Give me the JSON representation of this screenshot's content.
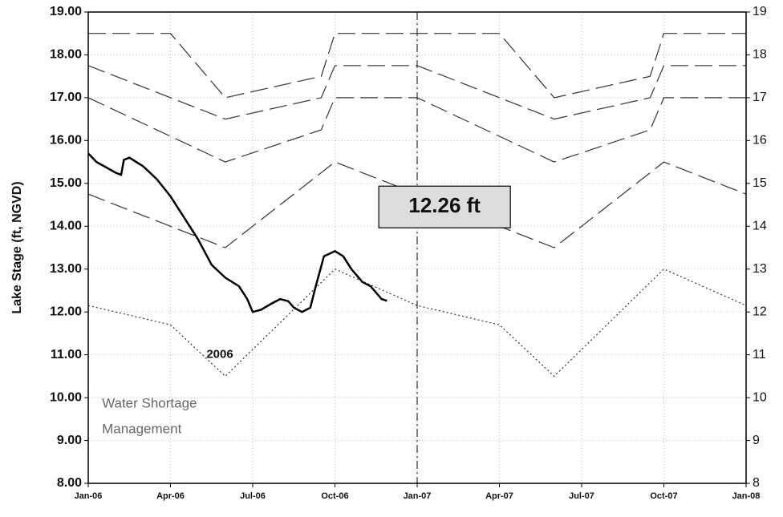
{
  "chart_data": {
    "type": "line",
    "y_label": "Lake Stage (ft, NGVD)",
    "xlim": [
      0,
      24
    ],
    "xticks": [
      {
        "value": 0,
        "label": "Jan-06"
      },
      {
        "value": 3,
        "label": "Apr-06"
      },
      {
        "value": 6,
        "label": "Jul-06"
      },
      {
        "value": 9,
        "label": "Oct-06"
      },
      {
        "value": 12,
        "label": "Jan-07"
      },
      {
        "value": 15,
        "label": "Apr-07"
      },
      {
        "value": 18,
        "label": "Jul-07"
      },
      {
        "value": 21,
        "label": "Oct-07"
      },
      {
        "value": 24,
        "label": "Jan-08"
      }
    ],
    "ylim": [
      8,
      19
    ],
    "yticks": [
      {
        "value": 8,
        "label": "8.00"
      },
      {
        "value": 9,
        "label": "9.00"
      },
      {
        "value": 10,
        "label": "10.00"
      },
      {
        "value": 11,
        "label": "11.00"
      },
      {
        "value": 12,
        "label": "12.00"
      },
      {
        "value": 13,
        "label": "13.00"
      },
      {
        "value": 14,
        "label": "14.00"
      },
      {
        "value": 15,
        "label": "15.00"
      },
      {
        "value": 16,
        "label": "16.00"
      },
      {
        "value": 17,
        "label": "17.00"
      },
      {
        "value": 18,
        "label": "18.00"
      },
      {
        "value": 19,
        "label": "19.00"
      }
    ],
    "y2lim": [
      8,
      19
    ],
    "y2ticks": [
      8,
      9,
      10,
      11,
      12,
      13,
      14,
      15,
      16,
      17,
      18,
      19
    ],
    "grid": true,
    "series": [
      {
        "color": "#333333",
        "dash": "dashed",
        "x": [
          0,
          3,
          5,
          8.5,
          9,
          15,
          17,
          20.5,
          21,
          24
        ],
        "values": [
          18.5,
          18.5,
          17.0,
          17.5,
          18.5,
          18.5,
          17.0,
          17.5,
          18.5,
          18.5
        ]
      },
      {
        "color": "#333333",
        "dash": "dashed",
        "x": [
          0,
          5,
          8.5,
          9,
          12,
          17,
          20.5,
          21,
          24
        ],
        "values": [
          17.75,
          16.5,
          17.0,
          17.75,
          17.75,
          16.5,
          17.0,
          17.75,
          17.75
        ]
      },
      {
        "color": "#333333",
        "dash": "dashed",
        "x": [
          0,
          5,
          8.5,
          9,
          12,
          17,
          20.5,
          21,
          24
        ],
        "values": [
          17.0,
          15.5,
          16.25,
          17.0,
          17.0,
          15.5,
          16.25,
          17.0,
          17.0
        ]
      },
      {
        "color": "#333333",
        "dash": "dashed",
        "x": [
          0,
          5,
          9,
          12,
          17,
          21,
          24
        ],
        "values": [
          14.75,
          13.5,
          15.5,
          14.75,
          13.5,
          15.5,
          14.75
        ]
      },
      {
        "color": "#333333",
        "dash": "dotted",
        "x": [
          0,
          3,
          5,
          9,
          12,
          15,
          17,
          21,
          24
        ],
        "values": [
          12.15,
          11.7,
          10.5,
          13.0,
          12.15,
          11.7,
          10.5,
          13.0,
          12.15
        ]
      },
      {
        "color": "#000000",
        "dash": "solid",
        "x": [
          0,
          0.3,
          1,
          1.2,
          1.3,
          1.5,
          2,
          2.5,
          3,
          3.5,
          4,
          4.5,
          5,
          5.5,
          5.8,
          6,
          6.3,
          6.7,
          7,
          7.3,
          7.5,
          7.8,
          8.1,
          8.3,
          8.6,
          9,
          9.3,
          9.6,
          10,
          10.3,
          10.7,
          10.9
        ],
        "values": [
          15.7,
          15.5,
          15.25,
          15.2,
          15.55,
          15.6,
          15.4,
          15.1,
          14.7,
          14.2,
          13.7,
          13.1,
          12.8,
          12.6,
          12.3,
          12.0,
          12.05,
          12.2,
          12.3,
          12.25,
          12.1,
          12.0,
          12.1,
          12.6,
          13.3,
          13.42,
          13.3,
          13.0,
          12.7,
          12.6,
          12.3,
          12.26
        ]
      }
    ],
    "annotations": [
      {
        "text": "12.26 ft",
        "x": 13.0,
        "y": 14.45,
        "boxed": true
      },
      {
        "text": "2006",
        "x": 4.8,
        "y": 11.0
      },
      {
        "text": "Water Shortage",
        "x": 0.5,
        "y": 9.85,
        "align": "start"
      },
      {
        "text": "Management",
        "x": 0.5,
        "y": 9.25,
        "align": "start"
      }
    ],
    "marker_line_x": 12
  }
}
